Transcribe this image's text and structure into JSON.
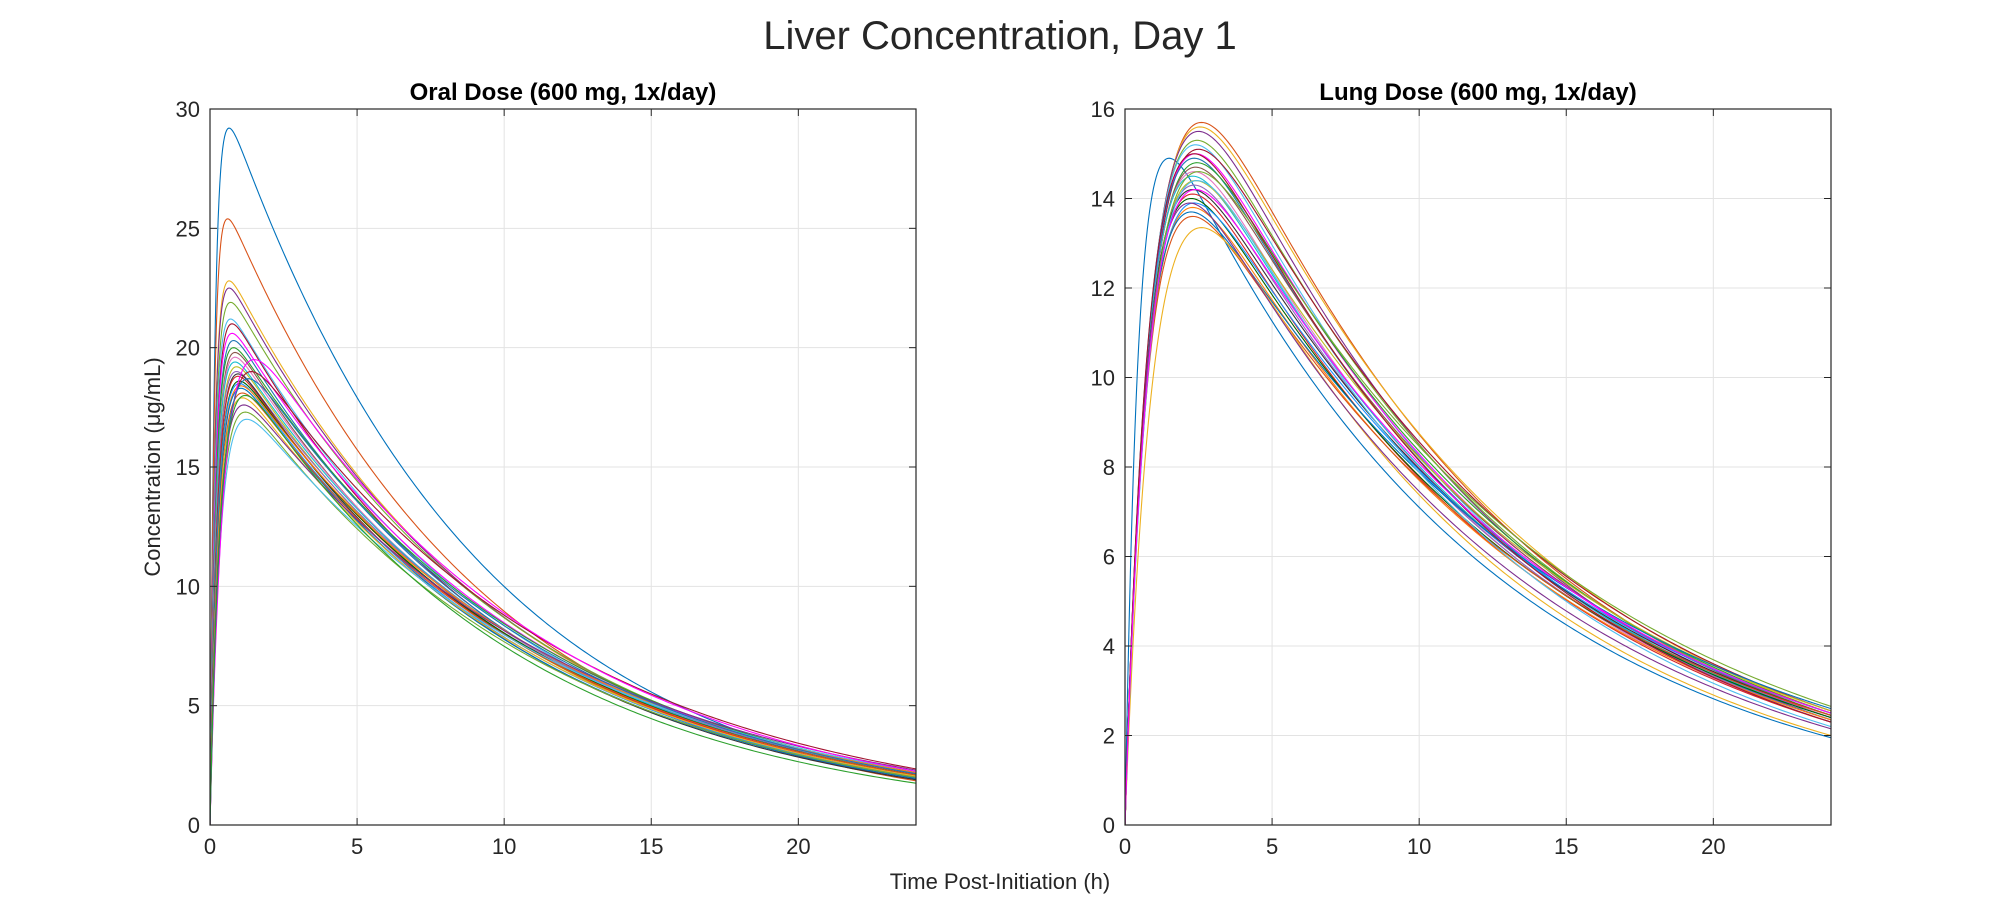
{
  "figure": {
    "title": "Liver Concentration, Day 1",
    "xlabel": "Time Post-Initiation (h)"
  },
  "colors": [
    "#0072BD",
    "#D95319",
    "#EDB120",
    "#7E2F8E",
    "#77AC30",
    "#4DBEEE",
    "#A2142F",
    "#FF00FF",
    "#1F77B4",
    "#2CA02C",
    "#8C564B",
    "#E377C2",
    "#17BECF",
    "#BCBD22",
    "#9467BD",
    "#333333",
    "#D62728",
    "#006400",
    "#1E90FF",
    "#FF7F0E"
  ],
  "chart_data": [
    {
      "type": "line",
      "title": "Oral Dose (600 mg, 1x/day)",
      "xlabel": "",
      "ylabel": "Concentration  (μg/mL)",
      "xlim": [
        0,
        24
      ],
      "ylim": [
        0,
        30
      ],
      "xticks": [
        0,
        5,
        10,
        15,
        20
      ],
      "yticks": [
        0,
        5,
        10,
        15,
        20,
        25,
        30
      ],
      "grid": true,
      "curve_model": "one-compartment oral absorption; each series gives peak time tmax (h), peak concentration cmax (μg/mL), concentration at 24 h (c24)",
      "series": [
        {
          "tmax": 0.65,
          "cmax": 29.2,
          "c24": 1.95
        },
        {
          "tmax": 0.6,
          "cmax": 25.4,
          "c24": 1.85
        },
        {
          "tmax": 0.65,
          "cmax": 22.8,
          "c24": 2.0
        },
        {
          "tmax": 0.65,
          "cmax": 22.5,
          "c24": 2.05
        },
        {
          "tmax": 0.7,
          "cmax": 21.9,
          "c24": 2.1
        },
        {
          "tmax": 0.7,
          "cmax": 21.2,
          "c24": 2.0
        },
        {
          "tmax": 0.75,
          "cmax": 21.0,
          "c24": 1.9
        },
        {
          "tmax": 0.75,
          "cmax": 20.6,
          "c24": 2.15
        },
        {
          "tmax": 0.8,
          "cmax": 20.3,
          "c24": 2.0
        },
        {
          "tmax": 0.8,
          "cmax": 20.0,
          "c24": 2.2
        },
        {
          "tmax": 0.85,
          "cmax": 19.8,
          "c24": 1.95
        },
        {
          "tmax": 0.85,
          "cmax": 19.6,
          "c24": 2.05
        },
        {
          "tmax": 0.85,
          "cmax": 19.4,
          "c24": 2.1
        },
        {
          "tmax": 0.9,
          "cmax": 19.2,
          "c24": 2.0
        },
        {
          "tmax": 0.9,
          "cmax": 19.0,
          "c24": 2.15
        },
        {
          "tmax": 0.95,
          "cmax": 18.9,
          "c24": 1.9
        },
        {
          "tmax": 0.95,
          "cmax": 18.8,
          "c24": 2.05
        },
        {
          "tmax": 1.0,
          "cmax": 18.6,
          "c24": 2.1
        },
        {
          "tmax": 1.0,
          "cmax": 18.5,
          "c24": 2.0
        },
        {
          "tmax": 1.05,
          "cmax": 18.4,
          "c24": 2.2
        },
        {
          "tmax": 1.05,
          "cmax": 18.3,
          "c24": 1.95
        },
        {
          "tmax": 1.1,
          "cmax": 18.1,
          "c24": 2.1
        },
        {
          "tmax": 1.1,
          "cmax": 17.9,
          "c24": 2.05
        },
        {
          "tmax": 1.15,
          "cmax": 17.6,
          "c24": 2.3
        },
        {
          "tmax": 1.2,
          "cmax": 17.3,
          "c24": 2.0
        },
        {
          "tmax": 1.25,
          "cmax": 17.0,
          "c24": 2.25
        },
        {
          "tmax": 1.4,
          "cmax": 19.0,
          "c24": 2.35
        },
        {
          "tmax": 1.5,
          "cmax": 19.5,
          "c24": 2.25
        },
        {
          "tmax": 1.3,
          "cmax": 18.7,
          "c24": 2.15
        },
        {
          "tmax": 1.2,
          "cmax": 18.0,
          "c24": 1.75
        }
      ]
    },
    {
      "type": "line",
      "title": "Lung Dose (600 mg, 1x/day)",
      "xlabel": "",
      "ylabel": "",
      "xlim": [
        0,
        24
      ],
      "ylim": [
        0,
        16
      ],
      "xticks": [
        0,
        5,
        10,
        15,
        20
      ],
      "yticks": [
        0,
        2,
        4,
        6,
        8,
        10,
        12,
        14,
        16
      ],
      "grid": true,
      "curve_model": "one-compartment absorption; each series gives peak time tmax (h), peak concentration cmax (μg/mL), concentration at 24 h (c24)",
      "series": [
        {
          "tmax": 1.5,
          "cmax": 14.9,
          "c24": 1.95
        },
        {
          "tmax": 2.6,
          "cmax": 15.7,
          "c24": 2.4
        },
        {
          "tmax": 2.55,
          "cmax": 15.6,
          "c24": 2.5
        },
        {
          "tmax": 2.5,
          "cmax": 15.5,
          "c24": 2.35
        },
        {
          "tmax": 2.45,
          "cmax": 15.3,
          "c24": 2.45
        },
        {
          "tmax": 2.4,
          "cmax": 15.2,
          "c24": 2.3
        },
        {
          "tmax": 2.5,
          "cmax": 15.1,
          "c24": 2.55
        },
        {
          "tmax": 2.4,
          "cmax": 15.0,
          "c24": 2.4
        },
        {
          "tmax": 2.35,
          "cmax": 14.9,
          "c24": 2.35
        },
        {
          "tmax": 2.45,
          "cmax": 14.8,
          "c24": 2.5
        },
        {
          "tmax": 2.4,
          "cmax": 14.7,
          "c24": 2.45
        },
        {
          "tmax": 2.35,
          "cmax": 14.6,
          "c24": 2.3
        },
        {
          "tmax": 2.3,
          "cmax": 14.5,
          "c24": 2.4
        },
        {
          "tmax": 2.4,
          "cmax": 14.4,
          "c24": 2.55
        },
        {
          "tmax": 2.35,
          "cmax": 14.3,
          "c24": 2.35
        },
        {
          "tmax": 2.3,
          "cmax": 14.2,
          "c24": 2.45
        },
        {
          "tmax": 2.3,
          "cmax": 14.1,
          "c24": 2.3
        },
        {
          "tmax": 2.25,
          "cmax": 14.0,
          "c24": 2.4
        },
        {
          "tmax": 2.35,
          "cmax": 13.9,
          "c24": 2.5
        },
        {
          "tmax": 2.3,
          "cmax": 13.8,
          "c24": 2.35
        },
        {
          "tmax": 2.25,
          "cmax": 13.7,
          "c24": 2.6
        },
        {
          "tmax": 2.3,
          "cmax": 13.6,
          "c24": 2.45
        },
        {
          "tmax": 2.6,
          "cmax": 13.35,
          "c24": 2.0
        },
        {
          "tmax": 2.2,
          "cmax": 13.9,
          "c24": 2.15
        },
        {
          "tmax": 2.5,
          "cmax": 14.6,
          "c24": 2.65
        },
        {
          "tmax": 2.45,
          "cmax": 14.4,
          "c24": 2.2
        },
        {
          "tmax": 2.35,
          "cmax": 15.0,
          "c24": 2.3
        },
        {
          "tmax": 2.4,
          "cmax": 14.2,
          "c24": 2.5
        }
      ]
    }
  ]
}
